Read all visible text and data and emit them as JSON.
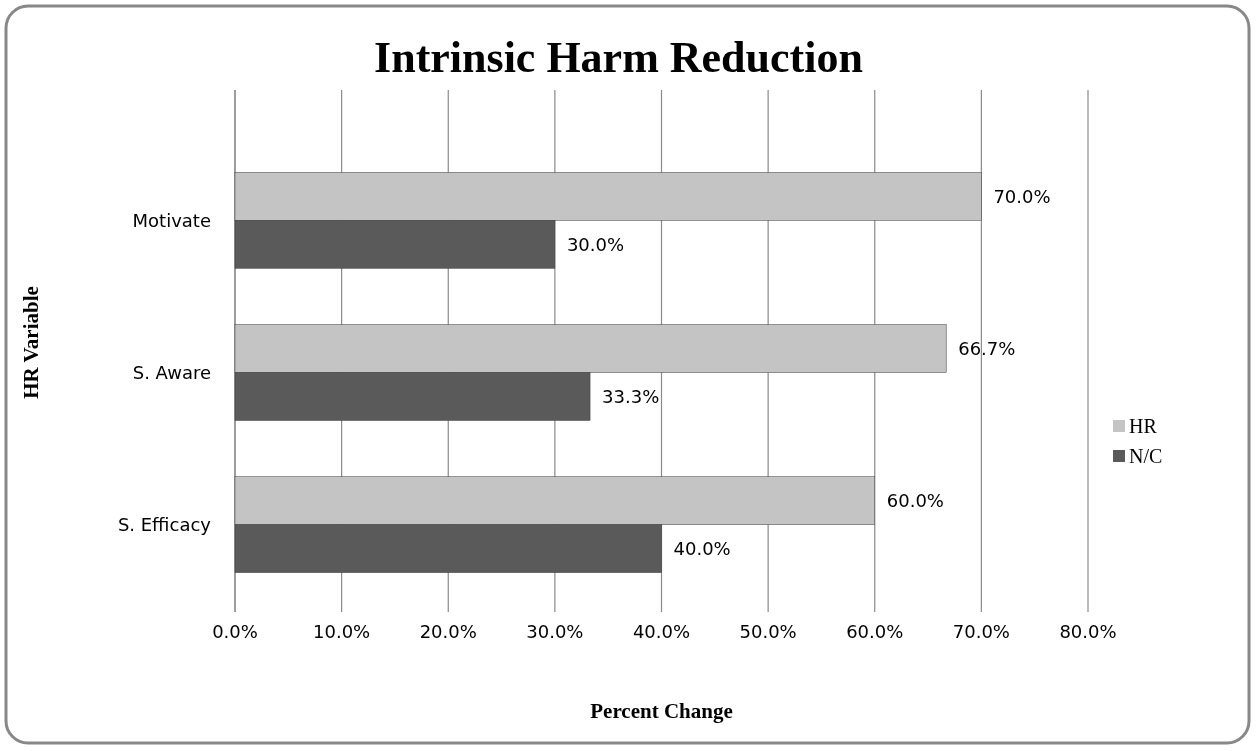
{
  "chart_data": {
    "type": "bar",
    "orientation": "horizontal",
    "title": "Intrinsic Harm Reduction",
    "xlabel": "Percent Change",
    "ylabel": "HR Variable",
    "categories": [
      "Motivate",
      "S. Aware",
      "S. Efficacy"
    ],
    "series": [
      {
        "name": "HR",
        "color": "#c4c4c4",
        "values": [
          70.0,
          66.7,
          60.0
        ],
        "value_labels": [
          "70.0%",
          "66.7%",
          "60.0%"
        ]
      },
      {
        "name": "N/C",
        "color": "#5a5a5a",
        "values": [
          30.0,
          33.3,
          40.0
        ],
        "value_labels": [
          "30.0%",
          "33.3%",
          "40.0%"
        ]
      }
    ],
    "xlim": [
      0,
      80
    ],
    "xticks": [
      {
        "value": 0,
        "label": "0.0%"
      },
      {
        "value": 10,
        "label": "10.0%"
      },
      {
        "value": 20,
        "label": "20.0%"
      },
      {
        "value": 30,
        "label": "30.0%"
      },
      {
        "value": 40,
        "label": "40.0%"
      },
      {
        "value": 50,
        "label": "50.0%"
      },
      {
        "value": 60,
        "label": "60.0%"
      },
      {
        "value": 70,
        "label": "70.0%"
      },
      {
        "value": 80,
        "label": "80.0%"
      }
    ],
    "grid": "x",
    "legend": "right"
  }
}
